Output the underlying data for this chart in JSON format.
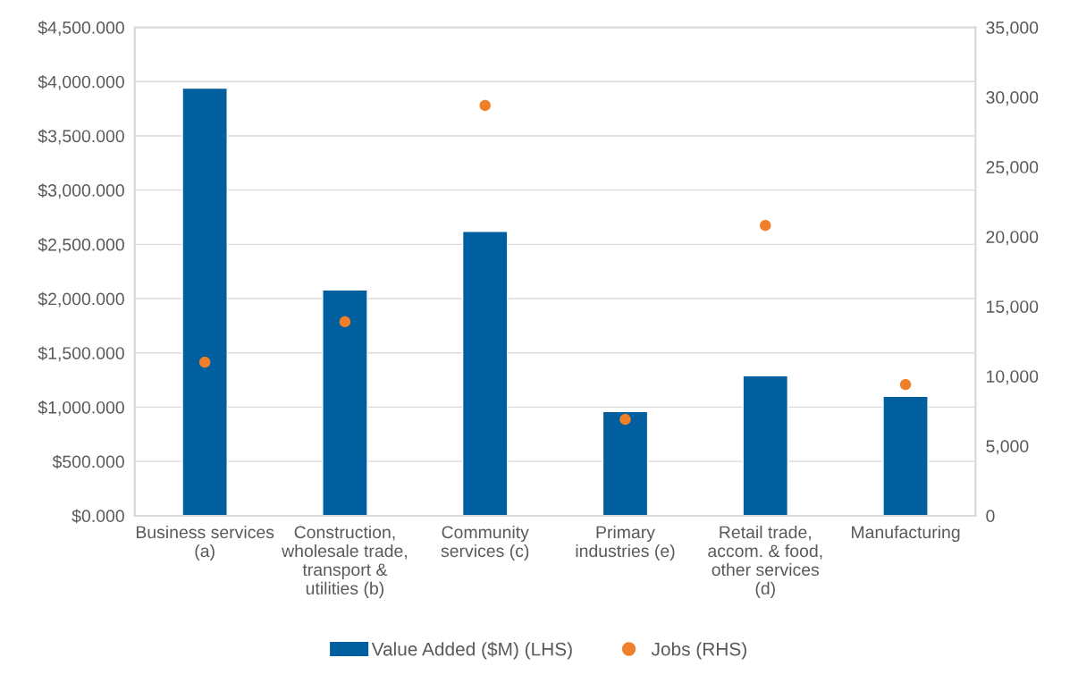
{
  "chart_data": {
    "type": "bar",
    "categories": [
      "Business services (a)",
      "Construction, wholesale trade, transport & utilities (b)",
      "Community services (c)",
      "Primary industries (e)",
      "Retail trade, accom. & food, other services (d)",
      "Manufacturing"
    ],
    "series": [
      {
        "name": "Value Added ($M) (LHS)",
        "color": "#005f9e",
        "values": [
          3940,
          2080,
          2620,
          960,
          1290,
          1100
        ]
      },
      {
        "name": "Jobs (RHS)",
        "type": "scatter",
        "axis": "y2",
        "color": "#f07f2a",
        "marker": "circle",
        "values": [
          11000,
          13900,
          29400,
          6900,
          20800,
          9400
        ]
      }
    ],
    "ylim": [
      0,
      4500
    ],
    "yticks": [
      {
        "value": 0,
        "label": "$0.000"
      },
      {
        "value": 500,
        "label": "$500.000"
      },
      {
        "value": 1000,
        "label": "$1,000.000"
      },
      {
        "value": 1500,
        "label": "$1,500.000"
      },
      {
        "value": 2000,
        "label": "$2,000.000"
      },
      {
        "value": 2500,
        "label": "$2,500.000"
      },
      {
        "value": 3000,
        "label": "$3,000.000"
      },
      {
        "value": 3500,
        "label": "$3,500.000"
      },
      {
        "value": 4000,
        "label": "$4,000.000"
      },
      {
        "value": 4500,
        "label": "$4,500.000"
      }
    ],
    "y2lim": [
      0,
      35000
    ],
    "y2ticks": [
      0,
      {
        "value": 5000,
        "label": "5,000"
      },
      {
        "value": 10000,
        "label": "10,000"
      },
      {
        "value": 15000,
        "label": "15,000"
      },
      {
        "value": 20000,
        "label": "20,000"
      },
      {
        "value": 25000,
        "label": "25,000"
      },
      {
        "value": 30000,
        "label": "30,000"
      },
      {
        "value": 35000,
        "label": "35,000"
      }
    ],
    "grid": "y",
    "legend": "bottom"
  }
}
